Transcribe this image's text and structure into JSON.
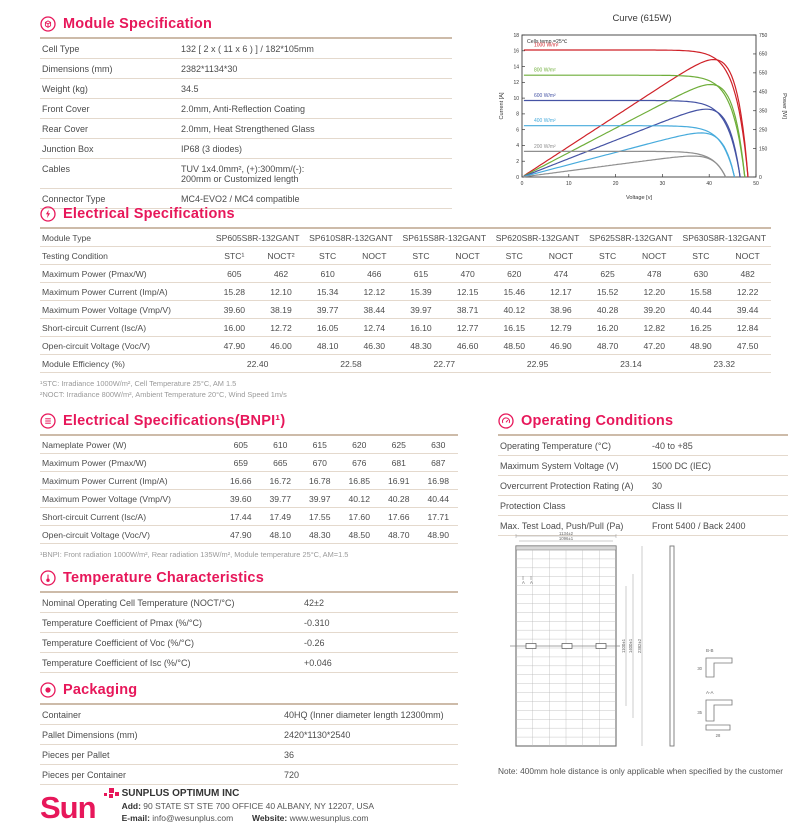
{
  "theme": {
    "accent": "#e7175a",
    "rule": "#e4d9cd",
    "rule_dark": "#cdbba9",
    "text": "#4c4c4c"
  },
  "sections": {
    "module_spec": {
      "title": "Module Specification",
      "icon": "module-icon",
      "rows": [
        [
          "Cell Type",
          "132 [ 2 x ( 11 x 6 ) ] / 182*105mm"
        ],
        [
          "Dimensions (mm)",
          "2382*1134*30"
        ],
        [
          "Weight (kg)",
          "34.5"
        ],
        [
          "Front Cover",
          "2.0mm, Anti-Reflection Coating"
        ],
        [
          "Rear Cover",
          "2.0mm, Heat Strengthened Glass"
        ],
        [
          "Junction Box",
          "IP68 (3 diodes)"
        ],
        [
          "Cables",
          "TUV 1x4.0mm², (+):300mm/(-):\n200mm or Customized length"
        ],
        [
          "Connector Type",
          "MC4-EVO2 / MC4 compatible"
        ]
      ]
    },
    "electrical": {
      "title": "Electrical Specifications",
      "icon": "lightning-icon",
      "module_type_label": "Module Type",
      "testing_condition_label": "Testing Condition",
      "modules": [
        "SP605S8R-132GANT",
        "SP610S8R-132GANT",
        "SP615S8R-132GANT",
        "SP620S8R-132GANT",
        "SP625S8R-132GANT",
        "SP630S8R-132GANT"
      ],
      "stc_first": "STC¹",
      "noct_first": "NOCT²",
      "stc": "STC",
      "noct": "NOCT",
      "rows": [
        {
          "label": "Maximum Power (Pmax/W)",
          "stc": [
            "605",
            "610",
            "615",
            "620",
            "625",
            "630"
          ],
          "noct": [
            "462",
            "466",
            "470",
            "474",
            "478",
            "482"
          ]
        },
        {
          "label": "Maximum Power Current (Imp/A)",
          "stc": [
            "15.28",
            "15.34",
            "15.39",
            "15.46",
            "15.52",
            "15.58"
          ],
          "noct": [
            "12.10",
            "12.12",
            "12.15",
            "12.17",
            "12.20",
            "12.22"
          ]
        },
        {
          "label": "Maximum Power Voltage (Vmp/V)",
          "stc": [
            "39.60",
            "39.77",
            "39.97",
            "40.12",
            "40.28",
            "40.44"
          ],
          "noct": [
            "38.19",
            "38.44",
            "38.71",
            "38.96",
            "39.20",
            "39.44"
          ]
        },
        {
          "label": "Short-circuit Current (Isc/A)",
          "stc": [
            "16.00",
            "16.05",
            "16.10",
            "16.15",
            "16.20",
            "16.25"
          ],
          "noct": [
            "12.72",
            "12.74",
            "12.77",
            "12.79",
            "12.82",
            "12.84"
          ]
        },
        {
          "label": "Open-circuit Voltage (Voc/V)",
          "stc": [
            "47.90",
            "48.10",
            "48.30",
            "48.50",
            "48.70",
            "48.90"
          ],
          "noct": [
            "46.00",
            "46.30",
            "46.60",
            "46.90",
            "47.20",
            "47.50"
          ]
        }
      ],
      "efficiency": {
        "label": "Module Efficiency (%)",
        "values": [
          "22.40",
          "22.58",
          "22.77",
          "22.95",
          "23.14",
          "23.32"
        ]
      },
      "footnotes": [
        "¹STC: Irradiance 1000W/m², Cell Temperature 25°C, AM 1.5",
        "²NOCT: Irradiance 800W/m², Ambient Temperature 20°C, Wind Speed 1m/s"
      ]
    },
    "bnpi": {
      "title": "Electrical Specifications(BNPI¹)",
      "icon": "layers-icon",
      "rows": [
        {
          "label": "Nameplate Power (W)",
          "values": [
            "605",
            "610",
            "615",
            "620",
            "625",
            "630"
          ]
        },
        {
          "label": "Maximum Power (Pmax/W)",
          "values": [
            "659",
            "665",
            "670",
            "676",
            "681",
            "687"
          ]
        },
        {
          "label": "Maximum Power Current (Imp/A)",
          "values": [
            "16.66",
            "16.72",
            "16.78",
            "16.85",
            "16.91",
            "16.98"
          ]
        },
        {
          "label": "Maximum Power Voltage (Vmp/V)",
          "values": [
            "39.60",
            "39.77",
            "39.97",
            "40.12",
            "40.28",
            "40.44"
          ]
        },
        {
          "label": "Short-circuit Current (Isc/A)",
          "values": [
            "17.44",
            "17.49",
            "17.55",
            "17.60",
            "17.66",
            "17.71"
          ]
        },
        {
          "label": "Open-circuit Voltage (Voc/V)",
          "values": [
            "47.90",
            "48.10",
            "48.30",
            "48.50",
            "48.70",
            "48.90"
          ]
        }
      ],
      "footnote": "¹BNPI: Front radiation 1000W/m², Rear radiation 135W/m², Module temperature 25°C, AM=1.5"
    },
    "operating": {
      "title": "Operating Conditions",
      "icon": "gauge-icon",
      "rows": [
        [
          "Operating Temperature (°C)",
          "-40 to +85"
        ],
        [
          "Maximum System Voltage (V)",
          "1500 DC (IEC)"
        ],
        [
          "Overcurrent Protection Rating (A)",
          "30"
        ],
        [
          "Protection Class",
          "Class II"
        ],
        [
          "Max. Test Load, Push/Pull (Pa)",
          "Front 5400 / Back 2400"
        ]
      ]
    },
    "temperature": {
      "title": "Temperature Characteristics",
      "icon": "thermometer-icon",
      "rows": [
        [
          "Nominal Operating Cell Temperature (NOCT/°C)",
          "42±2"
        ],
        [
          "Temperature Coefficient of Pmax (%/°C)",
          "-0.310"
        ],
        [
          "Temperature Coefficient of Voc (%/°C)",
          "-0.26"
        ],
        [
          "Temperature Coefficient of Isc (%/°C)",
          "+0.046"
        ]
      ]
    },
    "packaging": {
      "title": "Packaging",
      "icon": "box-icon",
      "rows": [
        [
          "Container",
          "40HQ (Inner diameter length 12300mm)"
        ],
        [
          "Pallet Dimensions (mm)",
          "2420*1130*2540"
        ],
        [
          "Pieces per Pallet",
          "36"
        ],
        [
          "Pieces per Container",
          "720"
        ]
      ]
    },
    "drawing": {
      "note": "Note: 400mm hole distance is only applicable when specified by the customer",
      "labels": {
        "dim_width_outer": "1134±2",
        "dim_width_inner": "1096±1",
        "dim_height": "2382±2",
        "dim_hole1": "1400±1",
        "dim_hole2": "1100±1",
        "detail_top": "B-B",
        "detail_bottom": "A-A",
        "d30": "30",
        "d35": "35",
        "d28": "28",
        "section_marker": "A"
      }
    }
  },
  "chart_data": {
    "type": "line",
    "title": "Curve (615W)",
    "annotation": "Cells temp.=25℃",
    "xlabel": "Voltage [v]",
    "ylabel_left": "Current [A]",
    "ylabel_right": "Power [W]",
    "xlim": [
      0,
      50
    ],
    "x_ticks": [
      0,
      10,
      20,
      30,
      40,
      50
    ],
    "ylim_left": [
      0,
      18
    ],
    "y_ticks_left": [
      0,
      2,
      4,
      6,
      8,
      10,
      12,
      14,
      16,
      18
    ],
    "ylim_right": [
      0,
      750
    ],
    "y_ticks_right": [
      0,
      150,
      250,
      350,
      450,
      550,
      650,
      750
    ],
    "grid": false,
    "legend_position": "inside-left",
    "curves": [
      "I-V",
      "P-V"
    ],
    "series": [
      {
        "name": "1000 W/m²",
        "color": "#cf2128",
        "isc": 16.1,
        "voc": 48.3,
        "vmp": 39.97,
        "imp": 15.39,
        "pmax": 615
      },
      {
        "name": "800 W/m²",
        "color": "#6fae3a",
        "isc": 12.9,
        "voc": 47.6,
        "vmp": 39.2,
        "imp": 12.5,
        "pmax": 490
      },
      {
        "name": "600 W/m²",
        "color": "#4553a4",
        "isc": 9.7,
        "voc": 46.6,
        "vmp": 38.5,
        "imp": 9.4,
        "pmax": 362
      },
      {
        "name": "400 W/m²",
        "color": "#47abdc",
        "isc": 6.5,
        "voc": 45.4,
        "vmp": 37.8,
        "imp": 6.3,
        "pmax": 238
      },
      {
        "name": "200 W/m²",
        "color": "#8f8f8f",
        "isc": 3.25,
        "voc": 43.5,
        "vmp": 36.8,
        "imp": 3.1,
        "pmax": 114
      }
    ]
  },
  "footer": {
    "logo_text": "Sun",
    "company": "SUNPLUS OPTIMUM INC",
    "add_label": "Add:",
    "address": "90 STATE ST STE 700 OFFICE 40 ALBANY, NY 12207, USA",
    "email_label": "E-mail:",
    "email": "info@wesunplus.com",
    "website_label": "Website:",
    "website": "www.wesunplus.com"
  }
}
